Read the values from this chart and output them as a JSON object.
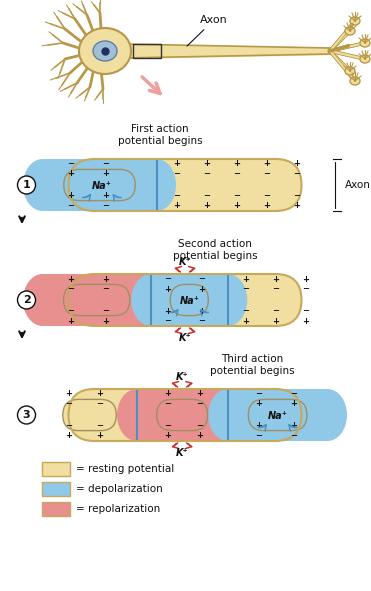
{
  "bg_color": "#ffffff",
  "resting_color": "#f0dfa0",
  "depol_color": "#90c8e8",
  "repol_color": "#e89090",
  "axon_outline": "#c8a85a",
  "inner_outline": "#a09060",
  "text_color": "#111111",
  "pink_arrow": "#f0a0a0",
  "blue_arrow": "#4a90c0",
  "red_arrow": "#c83030",
  "legend": {
    "resting": "resting potential",
    "depol": "depolarization",
    "repol": "repolarization"
  },
  "labels": {
    "axon": "Axon",
    "first": "First action\npotential begins",
    "second": "Second action\npotential begins",
    "third": "Third action\npotential begins",
    "na": "Na⁺",
    "k": "K⁺"
  }
}
